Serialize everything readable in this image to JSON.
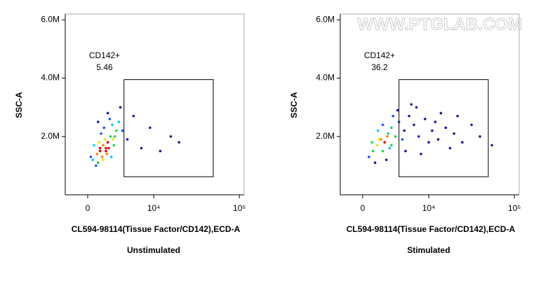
{
  "chart_data": [
    {
      "type": "scatter",
      "xlabel": "CL594-98114(Tissue Factor/CD142),ECD-A",
      "ylabel": "SSC-A",
      "caption": "Unstimulated",
      "xscale": "asinh",
      "xlim": [
        -2250,
        113500
      ],
      "ylim": [
        0,
        6200000
      ],
      "xticks": [
        0,
        {
          "value": 10000,
          "label": "10⁴"
        },
        {
          "value": 100000,
          "label": "10⁵"
        }
      ],
      "yticks": [
        {
          "value": 2000000,
          "label": "2.0M"
        },
        {
          "value": 4000000,
          "label": "4.0M"
        },
        {
          "value": 6000000,
          "label": "6.0M"
        }
      ],
      "gate": {
        "label": "CD142+",
        "percent": 5.46,
        "x": [
          4000,
          50000
        ],
        "y": [
          620000,
          3950000
        ]
      },
      "x": [
        500,
        900,
        1200,
        1500,
        1800,
        2000,
        2300,
        2600,
        3000,
        1000,
        1400,
        1700,
        2100,
        2500,
        800,
        1300,
        1600,
        1900,
        2200,
        2800,
        3300,
        3800,
        4500,
        5500,
        7000,
        9000,
        12000,
        16000,
        600,
        1100,
        1500,
        2000,
        2400,
        1800,
        1200,
        2700,
        3500,
        20000,
        300,
        1000
      ],
      "values": [
        1200000,
        1400000,
        1600000,
        1700000,
        1500000,
        1800000,
        2000000,
        1900000,
        2200000,
        1100000,
        1300000,
        1900000,
        1600000,
        2400000,
        1000000,
        2100000,
        2300000,
        1400000,
        2600000,
        2000000,
        2500000,
        2200000,
        1900000,
        2700000,
        1600000,
        2300000,
        1500000,
        2000000,
        1700000,
        1800000,
        1200000,
        2800000,
        1300000,
        1600000,
        1500000,
        1700000,
        3000000,
        1800000,
        1300000,
        2500000
      ]
    },
    {
      "type": "scatter",
      "xlabel": "CL594-98114(Tissue Factor/CD142),ECD-A",
      "ylabel": "SSC-A",
      "caption": "Stimulated",
      "xscale": "asinh",
      "xlim": [
        -2250,
        113500
      ],
      "ylim": [
        0,
        6200000
      ],
      "xticks": [
        0,
        {
          "value": 10000,
          "label": "10⁴"
        },
        {
          "value": 100000,
          "label": "10⁵"
        }
      ],
      "yticks": [
        {
          "value": 2000000,
          "label": "2.0M"
        },
        {
          "value": 4000000,
          "label": "4.0M"
        },
        {
          "value": 6000000,
          "label": "6.0M"
        }
      ],
      "gate": {
        "label": "CD142+",
        "percent": 36.2,
        "x": [
          4000,
          50000
        ],
        "y": [
          620000,
          3950000
        ]
      },
      "x": [
        600,
        1000,
        1400,
        1800,
        2200,
        2600,
        3000,
        3500,
        4000,
        4800,
        5600,
        6500,
        7500,
        9000,
        11000,
        13000,
        16000,
        20000,
        25000,
        32000,
        40000,
        55000,
        1200,
        2000,
        2800,
        3800,
        5000,
        6000,
        8000,
        10000,
        14000,
        18000,
        1600,
        2400,
        3200,
        4500,
        7000,
        12000,
        22000,
        900,
        2000,
        3000,
        1500,
        2500
      ],
      "values": [
        1300000,
        1500000,
        1700000,
        1900000,
        1800000,
        2100000,
        2300000,
        2000000,
        2500000,
        2200000,
        2700000,
        2400000,
        2000000,
        2600000,
        2200000,
        1900000,
        2300000,
        2100000,
        1800000,
        2400000,
        2000000,
        1700000,
        1100000,
        2400000,
        1600000,
        2900000,
        1500000,
        3100000,
        1400000,
        1800000,
        2800000,
        1600000,
        1900000,
        1200000,
        2700000,
        1900000,
        3000000,
        2500000,
        2700000,
        1800000,
        1500000,
        1700000,
        2200000,
        2000000
      ]
    }
  ],
  "watermark": "WWW.PTGLAB.COM"
}
